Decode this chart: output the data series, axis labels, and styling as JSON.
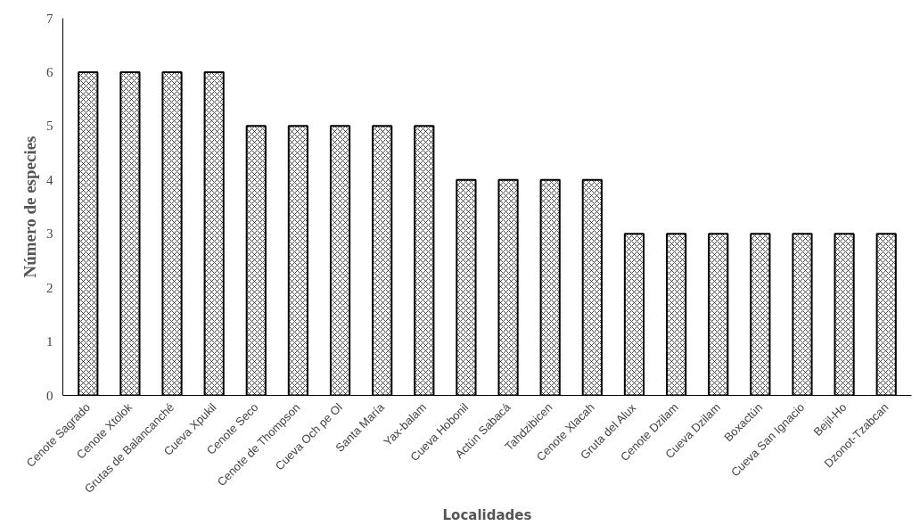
{
  "chart_data": {
    "type": "bar",
    "categories": [
      "Cenote Sagrado",
      "Cenote Xtolok",
      "Grutas de Balancanché",
      "Cueva Xpukil",
      "Cenote Seco",
      "Cenote de Thompson",
      "Cueva Och pe Ol",
      "Santa María",
      "Yax-balam",
      "Cueva Hobonil",
      "Actún Sabacá",
      "Tahdzibicen",
      "Cenote Xlacah",
      "Gruta del Alux",
      "Cenote Dzilam",
      "Cueva Dzilam",
      "Boxactún",
      "Cueva San Ignacio",
      "Bejil-Ho",
      "Dzonot-Tzabcan"
    ],
    "values": [
      6,
      6,
      6,
      6,
      5,
      5,
      5,
      5,
      5,
      4,
      4,
      4,
      4,
      3,
      3,
      3,
      3,
      3,
      3,
      3
    ],
    "color": "#000000",
    "xlabel": "Localidades",
    "ylabel": "Número de especies",
    "ylim": [
      0,
      7
    ],
    "yticks": [
      0,
      1,
      2,
      3,
      4,
      5,
      6,
      7
    ],
    "grid": false
  }
}
